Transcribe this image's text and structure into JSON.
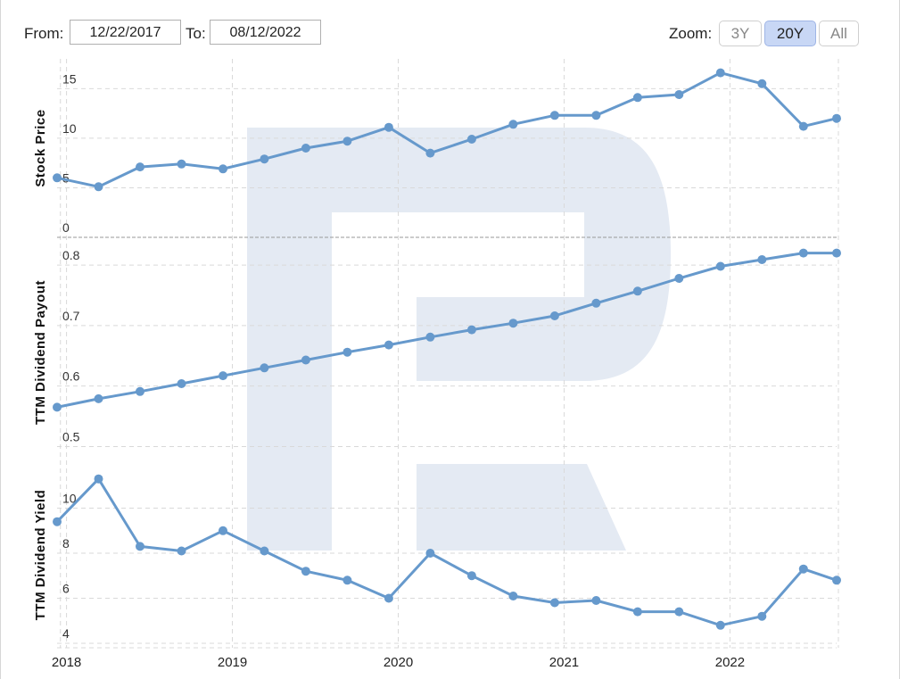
{
  "range_selector": {
    "from_label": "From:",
    "from_value": "12/22/2017",
    "to_label": "To:",
    "to_value": "08/12/2022"
  },
  "zoom": {
    "label": "Zoom:",
    "buttons": [
      {
        "label": "3Y",
        "active": false
      },
      {
        "label": "20Y",
        "active": true
      },
      {
        "label": "All",
        "active": false
      }
    ]
  },
  "colors": {
    "series": "#6699cc",
    "grid": "#d9d9d9",
    "watermark": "#e4eaf3"
  },
  "chart_data": [
    {
      "type": "line",
      "title": "",
      "ylabel": "Stock Price",
      "ylim": [
        0,
        18
      ],
      "yticks": [
        0,
        5,
        10,
        15
      ],
      "x": [
        2017.9,
        2018.15,
        2018.4,
        2018.65,
        2018.9,
        2019.15,
        2019.4,
        2019.65,
        2019.9,
        2020.15,
        2020.4,
        2020.65,
        2020.9,
        2021.15,
        2021.4,
        2021.65,
        2021.9,
        2022.15,
        2022.4,
        2022.6
      ],
      "values": [
        6.0,
        5.1,
        7.1,
        7.4,
        6.9,
        7.9,
        9.0,
        9.7,
        11.1,
        8.5,
        9.9,
        11.4,
        12.3,
        12.3,
        14.1,
        14.4,
        16.6,
        15.5,
        11.2,
        12.0
      ]
    },
    {
      "type": "line",
      "title": "",
      "ylabel": "TTM Dividend Payout",
      "ylim": [
        0.48,
        0.84
      ],
      "yticks": [
        0.5,
        0.6,
        0.7,
        0.8
      ],
      "x": [
        2017.9,
        2018.15,
        2018.4,
        2018.65,
        2018.9,
        2019.15,
        2019.4,
        2019.65,
        2019.9,
        2020.15,
        2020.4,
        2020.65,
        2020.9,
        2021.15,
        2021.4,
        2021.65,
        2021.9,
        2022.15,
        2022.4,
        2022.6
      ],
      "values": [
        0.565,
        0.579,
        0.591,
        0.604,
        0.617,
        0.63,
        0.643,
        0.656,
        0.668,
        0.681,
        0.693,
        0.704,
        0.716,
        0.737,
        0.757,
        0.778,
        0.798,
        0.809,
        0.82,
        0.82
      ]
    },
    {
      "type": "line",
      "title": "",
      "ylabel": "TTM Dividend Yield",
      "ylim": [
        3.8,
        12.2
      ],
      "yticks": [
        4,
        6,
        8,
        10
      ],
      "x": [
        2017.9,
        2018.15,
        2018.4,
        2018.65,
        2018.9,
        2019.15,
        2019.4,
        2019.65,
        2019.9,
        2020.15,
        2020.4,
        2020.65,
        2020.9,
        2021.15,
        2021.4,
        2021.65,
        2021.9,
        2022.15,
        2022.4,
        2022.6
      ],
      "values": [
        9.4,
        11.3,
        8.3,
        8.1,
        9.0,
        8.1,
        7.2,
        6.8,
        6.0,
        8.0,
        7.0,
        6.1,
        5.8,
        5.9,
        5.4,
        5.4,
        4.8,
        5.2,
        7.3,
        6.8
      ]
    }
  ],
  "x_axis": {
    "ticks": [
      2018,
      2019,
      2020,
      2021,
      2022
    ],
    "tick_labels": [
      "2018",
      "2019",
      "2020",
      "2021",
      "2022"
    ]
  }
}
